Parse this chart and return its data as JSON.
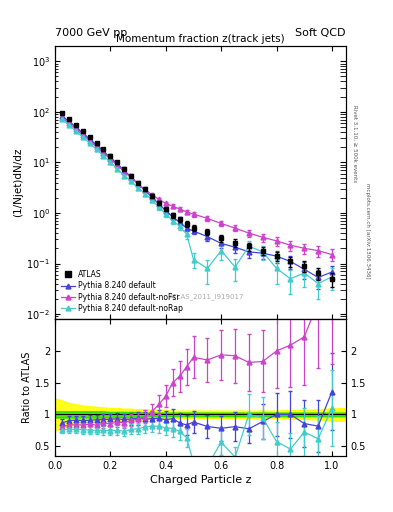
{
  "title": "Momentum fraction z(track jets)",
  "header_left": "7000 GeV pp",
  "header_right": "Soft QCD",
  "right_label_top": "Rivet 3.1.10, ≥ 500k events",
  "right_label_bot": "mcplots.cern.ch [arXiv:1306.3436]",
  "watermark": "ATLAS_2011_I919017",
  "xlabel": "Charged Particle z",
  "ylabel_main": "(1/Njet)dN/dz",
  "ylabel_ratio": "Ratio to ATLAS",
  "ylim_main_log": [
    -2.1,
    3.3
  ],
  "ylim_ratio": [
    0.35,
    2.5
  ],
  "ratio_yticks": [
    0.5,
    1.0,
    1.5,
    2.0
  ],
  "ratio_yticklabels": [
    "0.5",
    "1",
    "1.5",
    "2"
  ],
  "xlim": [
    0.0,
    1.05
  ],
  "atlas_color": "#000000",
  "pythia_default_color": "#4444dd",
  "pythia_nofsr_color": "#cc44cc",
  "pythia_norap_color": "#44cccc",
  "atlas_x": [
    0.025,
    0.05,
    0.075,
    0.1,
    0.125,
    0.15,
    0.175,
    0.2,
    0.225,
    0.25,
    0.275,
    0.3,
    0.325,
    0.35,
    0.375,
    0.4,
    0.425,
    0.45,
    0.475,
    0.5,
    0.55,
    0.6,
    0.65,
    0.7,
    0.75,
    0.8,
    0.85,
    0.9,
    0.95,
    1.0
  ],
  "atlas_y": [
    95,
    72,
    55,
    42,
    32,
    24,
    18,
    13.5,
    10,
    7.5,
    5.5,
    4.0,
    3.0,
    2.2,
    1.6,
    1.2,
    0.9,
    0.75,
    0.6,
    0.5,
    0.42,
    0.32,
    0.26,
    0.22,
    0.18,
    0.14,
    0.11,
    0.09,
    0.065,
    0.05
  ],
  "atlas_yerr": [
    5,
    4,
    3,
    2.5,
    2,
    1.5,
    1.2,
    0.9,
    0.7,
    0.5,
    0.4,
    0.3,
    0.25,
    0.2,
    0.15,
    0.12,
    0.1,
    0.09,
    0.08,
    0.07,
    0.06,
    0.05,
    0.045,
    0.04,
    0.035,
    0.03,
    0.025,
    0.022,
    0.018,
    0.015
  ],
  "pythia_default_x": [
    0.025,
    0.05,
    0.075,
    0.1,
    0.125,
    0.15,
    0.175,
    0.2,
    0.225,
    0.25,
    0.275,
    0.3,
    0.325,
    0.35,
    0.375,
    0.4,
    0.425,
    0.45,
    0.475,
    0.5,
    0.55,
    0.6,
    0.65,
    0.7,
    0.75,
    0.8,
    0.85,
    0.9,
    0.95,
    1.0
  ],
  "pythia_default_y": [
    82,
    65,
    50,
    38,
    29,
    22,
    16.5,
    12.5,
    9.3,
    6.9,
    5.1,
    3.75,
    2.78,
    2.05,
    1.5,
    1.1,
    0.84,
    0.65,
    0.5,
    0.44,
    0.34,
    0.25,
    0.21,
    0.17,
    0.16,
    0.14,
    0.11,
    0.077,
    0.053,
    0.068
  ],
  "pythia_default_yerr": [
    4,
    3.5,
    2.8,
    2.2,
    1.7,
    1.3,
    1.0,
    0.8,
    0.6,
    0.45,
    0.35,
    0.27,
    0.22,
    0.18,
    0.14,
    0.11,
    0.09,
    0.08,
    0.07,
    0.065,
    0.06,
    0.05,
    0.045,
    0.04,
    0.038,
    0.036,
    0.032,
    0.028,
    0.022,
    0.022
  ],
  "pythia_nofsr_x": [
    0.025,
    0.05,
    0.075,
    0.1,
    0.125,
    0.15,
    0.175,
    0.2,
    0.225,
    0.25,
    0.275,
    0.3,
    0.325,
    0.35,
    0.375,
    0.4,
    0.425,
    0.45,
    0.475,
    0.5,
    0.55,
    0.6,
    0.65,
    0.7,
    0.75,
    0.8,
    0.85,
    0.9,
    0.95,
    1.0
  ],
  "pythia_nofsr_y": [
    76,
    60,
    46,
    35,
    27,
    20,
    15.5,
    11.5,
    8.8,
    6.5,
    5.0,
    3.7,
    2.9,
    2.3,
    1.85,
    1.55,
    1.35,
    1.2,
    1.05,
    0.95,
    0.78,
    0.62,
    0.5,
    0.4,
    0.33,
    0.28,
    0.23,
    0.2,
    0.18,
    0.15
  ],
  "pythia_nofsr_yerr": [
    4,
    3.2,
    2.6,
    2.0,
    1.5,
    1.2,
    0.95,
    0.75,
    0.58,
    0.44,
    0.34,
    0.26,
    0.22,
    0.18,
    0.15,
    0.13,
    0.12,
    0.11,
    0.1,
    0.1,
    0.09,
    0.08,
    0.07,
    0.065,
    0.06,
    0.055,
    0.05,
    0.048,
    0.045,
    0.04
  ],
  "pythia_norap_x": [
    0.025,
    0.05,
    0.075,
    0.1,
    0.125,
    0.15,
    0.175,
    0.2,
    0.225,
    0.25,
    0.275,
    0.3,
    0.325,
    0.35,
    0.375,
    0.4,
    0.425,
    0.45,
    0.475,
    0.5,
    0.55,
    0.6,
    0.65,
    0.7,
    0.75,
    0.8,
    0.85,
    0.9,
    0.95,
    1.0
  ],
  "pythia_norap_y": [
    72,
    55,
    42,
    32,
    24,
    18,
    13.5,
    10.0,
    7.5,
    5.5,
    4.2,
    3.1,
    2.4,
    1.8,
    1.3,
    0.95,
    0.7,
    0.55,
    0.38,
    0.12,
    0.08,
    0.18,
    0.085,
    0.22,
    0.17,
    0.08,
    0.05,
    0.065,
    0.04,
    0.055
  ],
  "pythia_norap_yerr": [
    3.8,
    3.0,
    2.4,
    1.9,
    1.4,
    1.1,
    0.9,
    0.7,
    0.55,
    0.4,
    0.3,
    0.23,
    0.19,
    0.15,
    0.13,
    0.1,
    0.09,
    0.08,
    0.07,
    0.04,
    0.04,
    0.06,
    0.04,
    0.06,
    0.05,
    0.04,
    0.025,
    0.03,
    0.02,
    0.025
  ],
  "band_x": [
    0.0,
    0.025,
    0.05,
    0.075,
    0.1,
    0.125,
    0.15,
    0.175,
    0.2,
    0.225,
    0.25,
    0.275,
    0.3,
    0.325,
    0.35,
    0.375,
    0.4,
    0.425,
    0.45,
    0.475,
    0.5,
    0.55,
    0.6,
    0.65,
    0.7,
    0.75,
    0.8,
    0.85,
    0.9,
    0.95,
    1.0,
    1.05
  ],
  "band_green_lo": [
    0.95,
    0.95,
    0.95,
    0.95,
    0.95,
    0.95,
    0.95,
    0.95,
    0.96,
    0.96,
    0.96,
    0.96,
    0.96,
    0.97,
    0.97,
    0.97,
    0.97,
    0.97,
    0.97,
    0.97,
    0.97,
    0.97,
    0.97,
    0.97,
    0.97,
    0.97,
    0.97,
    0.97,
    0.97,
    0.97,
    0.97,
    0.97
  ],
  "band_green_hi": [
    1.05,
    1.05,
    1.05,
    1.05,
    1.05,
    1.05,
    1.05,
    1.05,
    1.04,
    1.04,
    1.04,
    1.04,
    1.04,
    1.03,
    1.03,
    1.03,
    1.03,
    1.03,
    1.03,
    1.03,
    1.03,
    1.03,
    1.03,
    1.03,
    1.03,
    1.03,
    1.03,
    1.03,
    1.03,
    1.03,
    1.03,
    1.03
  ],
  "band_yellow_lo": [
    0.75,
    0.78,
    0.82,
    0.84,
    0.86,
    0.87,
    0.88,
    0.89,
    0.9,
    0.9,
    0.91,
    0.91,
    0.92,
    0.92,
    0.93,
    0.93,
    0.93,
    0.94,
    0.94,
    0.94,
    0.94,
    0.94,
    0.94,
    0.94,
    0.94,
    0.94,
    0.94,
    0.93,
    0.93,
    0.92,
    0.9,
    0.9
  ],
  "band_yellow_hi": [
    1.25,
    1.22,
    1.18,
    1.16,
    1.14,
    1.13,
    1.12,
    1.11,
    1.1,
    1.1,
    1.09,
    1.09,
    1.08,
    1.08,
    1.07,
    1.07,
    1.07,
    1.06,
    1.06,
    1.06,
    1.06,
    1.06,
    1.06,
    1.06,
    1.06,
    1.06,
    1.06,
    1.07,
    1.07,
    1.08,
    1.1,
    1.1
  ]
}
